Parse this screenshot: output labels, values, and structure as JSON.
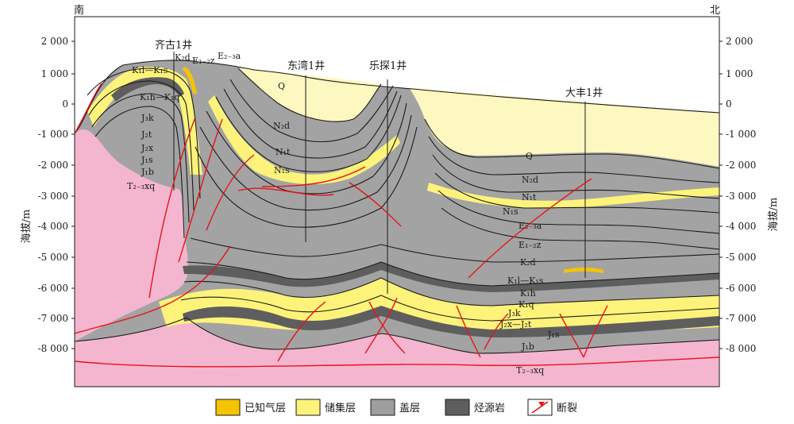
{
  "directions": {
    "south": "南",
    "north": "北"
  },
  "axis": {
    "left_title": "海拔/m",
    "right_title": "海拔/m",
    "ticks": [
      "2 000",
      "1 000",
      "0",
      "-1 000",
      "-2 000",
      "-3 000",
      "-4 000",
      "-5 000",
      "-6 000",
      "-7 000",
      "-8 000"
    ]
  },
  "wells": [
    "齐古1井",
    "东湾1井",
    "乐探1井",
    "大丰1井"
  ],
  "strata_left": [
    "K₂d",
    "E₁₋₂z",
    "E₂₋₃a",
    "K₁l—K₁s",
    "K₁h—K₁q",
    "J₃k",
    "J₂t",
    "J₂x",
    "J₁s",
    "J₁b",
    "T₂₋₃xq"
  ],
  "strata_middle": [
    "Q",
    "N₂d",
    "N₁t",
    "N₁s"
  ],
  "strata_right": [
    "Q",
    "N₂d",
    "N₁t",
    "N₁s",
    "E₂₋₃a",
    "E₁₋₂z",
    "K₂d",
    "K₁l—K₁s",
    "K₁h",
    "K₁q",
    "J₃k",
    "J₂x—J₂t",
    "J₁s",
    "J₁b",
    "T₂₋₃xq"
  ],
  "legend": [
    {
      "label": "已知气层",
      "color": "#f5c400"
    },
    {
      "label": "储集层",
      "color": "#fdf37a"
    },
    {
      "label": "盖层",
      "color": "#9e9e9e"
    },
    {
      "label": "烃源岩",
      "color": "#5e5e5e"
    },
    {
      "label": "断裂",
      "color": "#e8121b"
    }
  ]
}
